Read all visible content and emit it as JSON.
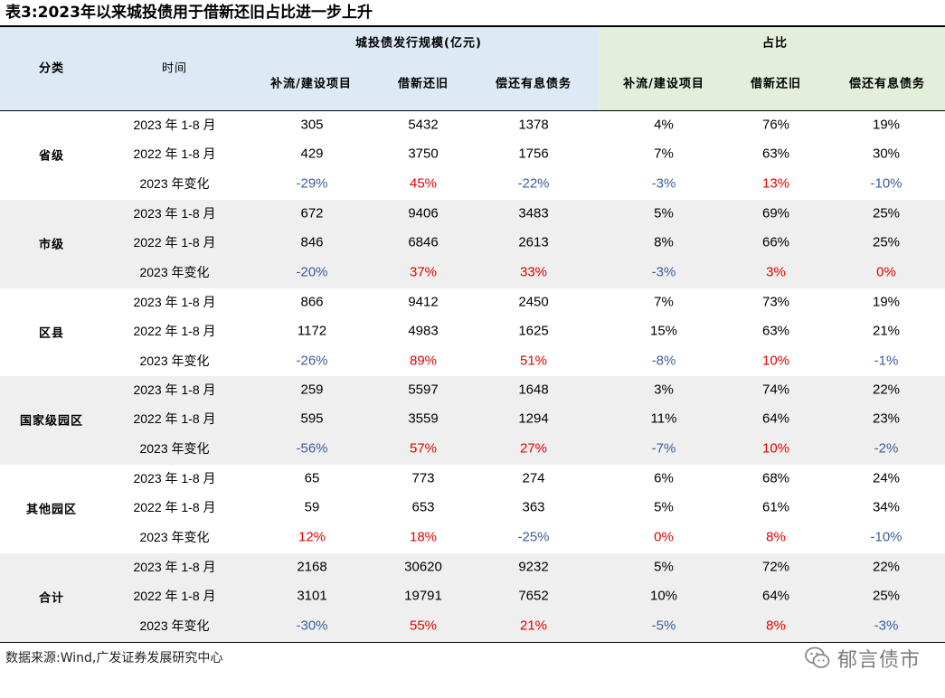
{
  "title": "表3:2023年以来城投债用于借新还旧占比进一步上升",
  "header": {
    "category": "分类",
    "time": "时间",
    "group_scale": "城投债发行规模(亿元)",
    "group_share": "占比",
    "col_a": "补流/建设项目",
    "col_b": "借新还旧",
    "col_c": "偿还有息债务"
  },
  "rows": [
    {
      "category": "省级",
      "r1": {
        "time": "2023 年 1-8 月",
        "v": [
          "305",
          "5432",
          "1378",
          "4%",
          "76%",
          "19%"
        ]
      },
      "r2": {
        "time": "2022 年 1-8 月",
        "v": [
          "429",
          "3750",
          "1756",
          "7%",
          "63%",
          "30%"
        ]
      },
      "r3": {
        "time": "2023 年变化",
        "v": [
          "-29%",
          "45%",
          "-22%",
          "-3%",
          "13%",
          "-10%"
        ]
      }
    },
    {
      "category": "市级",
      "r1": {
        "time": "2023 年 1-8 月",
        "v": [
          "672",
          "9406",
          "3483",
          "5%",
          "69%",
          "25%"
        ]
      },
      "r2": {
        "time": "2022 年 1-8 月",
        "v": [
          "846",
          "6846",
          "2613",
          "8%",
          "66%",
          "25%"
        ]
      },
      "r3": {
        "time": "2023 年变化",
        "v": [
          "-20%",
          "37%",
          "33%",
          "-3%",
          "3%",
          "0%"
        ]
      }
    },
    {
      "category": "区县",
      "r1": {
        "time": "2023 年 1-8 月",
        "v": [
          "866",
          "9412",
          "2450",
          "7%",
          "73%",
          "19%"
        ]
      },
      "r2": {
        "time": "2022 年 1-8 月",
        "v": [
          "1172",
          "4983",
          "1625",
          "15%",
          "63%",
          "21%"
        ]
      },
      "r3": {
        "time": "2023 年变化",
        "v": [
          "-26%",
          "89%",
          "51%",
          "-8%",
          "10%",
          "-1%"
        ]
      }
    },
    {
      "category": "国家级园区",
      "r1": {
        "time": "2023 年 1-8 月",
        "v": [
          "259",
          "5597",
          "1648",
          "3%",
          "74%",
          "22%"
        ]
      },
      "r2": {
        "time": "2022 年 1-8 月",
        "v": [
          "595",
          "3559",
          "1294",
          "11%",
          "64%",
          "23%"
        ]
      },
      "r3": {
        "time": "2023 年变化",
        "v": [
          "-56%",
          "57%",
          "27%",
          "-7%",
          "10%",
          "-2%"
        ]
      }
    },
    {
      "category": "其他园区",
      "r1": {
        "time": "2023 年 1-8 月",
        "v": [
          "65",
          "773",
          "274",
          "6%",
          "68%",
          "24%"
        ]
      },
      "r2": {
        "time": "2022 年 1-8 月",
        "v": [
          "59",
          "653",
          "363",
          "5%",
          "61%",
          "34%"
        ]
      },
      "r3": {
        "time": "2023 年变化",
        "v": [
          "12%",
          "18%",
          "-25%",
          "0%",
          "8%",
          "-10%"
        ]
      }
    },
    {
      "category": "合计",
      "r1": {
        "time": "2023 年 1-8 月",
        "v": [
          "2168",
          "30620",
          "9232",
          "5%",
          "72%",
          "22%"
        ]
      },
      "r2": {
        "time": "2022 年 1-8 月",
        "v": [
          "3101",
          "19791",
          "7652",
          "10%",
          "64%",
          "25%"
        ]
      },
      "r3": {
        "time": "2023 年变化",
        "v": [
          "-30%",
          "55%",
          "21%",
          "-5%",
          "8%",
          "-3%"
        ]
      }
    }
  ],
  "colors": {
    "positive_change": "#e30000",
    "negative_change": "#3a5e9c",
    "header_blue": "#dde9f5",
    "header_green": "#e3efdb",
    "row_shade": "#efefef"
  },
  "source": "数据来源:Wind,广发证券发展研究中心",
  "watermark": {
    "icon": "wechat-icon",
    "text": "郁言债市"
  }
}
